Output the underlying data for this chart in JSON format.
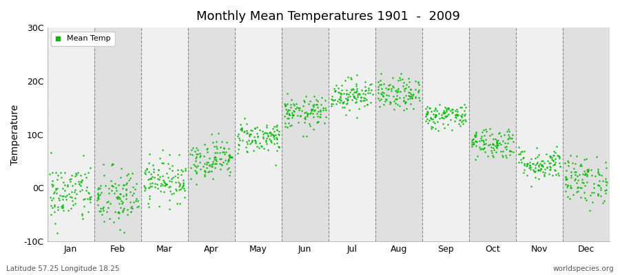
{
  "title": "Monthly Mean Temperatures 1901  -  2009",
  "ylabel": "Temperature",
  "xlabel_bottom_left": "Latitude 57.25 Longitude 18.25",
  "xlabel_bottom_right": "worldspecies.org",
  "legend_label": "Mean Temp",
  "marker_color": "#00BB00",
  "bg_even": "#F0F0F0",
  "bg_odd": "#E0E0E0",
  "fig_background": "#FFFFFF",
  "ylim": [
    -10,
    30
  ],
  "yticks": [
    -10,
    0,
    10,
    20,
    30
  ],
  "ytick_labels": [
    "-10C",
    "0C",
    "10C",
    "20C",
    "30C"
  ],
  "months": [
    "Jan",
    "Feb",
    "Mar",
    "Apr",
    "May",
    "Jun",
    "Jul",
    "Aug",
    "Sep",
    "Oct",
    "Nov",
    "Dec"
  ],
  "month_means": [
    -1.0,
    -2.0,
    1.5,
    5.5,
    9.5,
    14.0,
    17.5,
    17.5,
    13.5,
    8.5,
    4.5,
    1.5
  ],
  "month_stds": [
    2.8,
    3.0,
    2.0,
    1.8,
    1.5,
    1.5,
    1.5,
    1.5,
    1.2,
    1.5,
    1.5,
    2.2
  ],
  "n_years": 109,
  "seed": 42
}
